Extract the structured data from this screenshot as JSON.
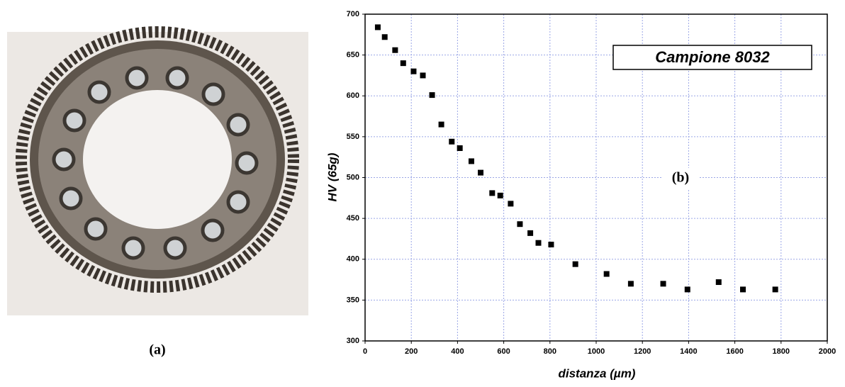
{
  "photo": {
    "label": "(a)"
  },
  "chart_data": {
    "type": "scatter",
    "x": [
      55,
      85,
      130,
      165,
      210,
      250,
      290,
      330,
      375,
      410,
      460,
      500,
      550,
      585,
      630,
      670,
      715,
      750,
      805,
      910,
      1045,
      1150,
      1290,
      1395,
      1530,
      1635,
      1775
    ],
    "values": [
      684,
      672,
      656,
      640,
      630,
      625,
      601,
      565,
      544,
      536,
      520,
      506,
      481,
      478,
      468,
      443,
      432,
      420,
      418,
      394,
      382,
      370,
      370,
      363,
      372,
      363,
      363
    ],
    "color": "#000000",
    "xlabel": "distanza (µm)",
    "ylabel": "HV (65g)",
    "xlim": [
      0,
      2000
    ],
    "ylim": [
      300,
      700
    ],
    "xticks": [
      0,
      200,
      400,
      600,
      800,
      1000,
      1200,
      1400,
      1600,
      1800,
      2000
    ],
    "yticks": [
      300,
      350,
      400,
      450,
      500,
      550,
      600,
      650,
      700
    ],
    "grid": true,
    "annotations": [
      "Campione 8032",
      "(b)"
    ]
  }
}
